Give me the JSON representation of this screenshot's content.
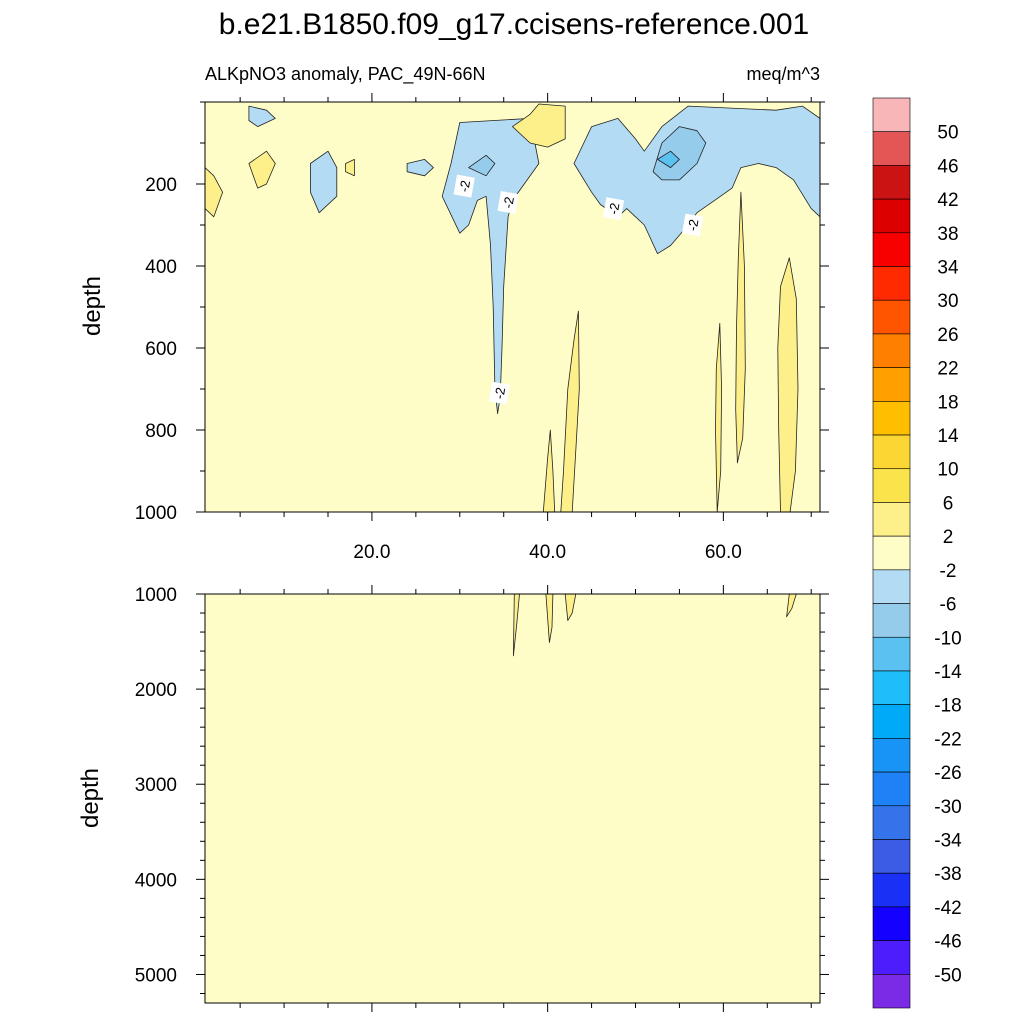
{
  "title": "b.e21.B1850.f09_g17.ccisens-reference.001",
  "chart_data": [
    {
      "type": "contour",
      "subtitle_left": "ALKpNO3 anomaly, PAC_49N-66N",
      "subtitle_right": "meq/m^3",
      "ylabel": "depth",
      "xlim": [
        1,
        71
      ],
      "ylim": [
        0,
        1000
      ],
      "y_reversed": true,
      "xticks": [
        20,
        40,
        60
      ],
      "xtick_labels": [
        "20.0",
        "40.0",
        "60.0"
      ],
      "yticks": [
        200,
        400,
        600,
        800,
        1000
      ],
      "ytick_labels": [
        "200",
        "400",
        "600",
        "800",
        "1000"
      ],
      "background_level": "-2 to 2",
      "contour_labels": [
        {
          "text": "-2",
          "x": 30.5,
          "y": 205
        },
        {
          "text": "-2",
          "x": 35.5,
          "y": 245
        },
        {
          "text": "-2",
          "x": 47.5,
          "y": 260
        },
        {
          "text": "-2",
          "x": 56.5,
          "y": 300
        },
        {
          "text": "-2",
          "x": 34.5,
          "y": 710
        }
      ],
      "regions": [
        {
          "level": "-6 to -2",
          "points": [
            [
              28,
              230
            ],
            [
              29,
              150
            ],
            [
              30,
              50
            ],
            [
              38,
              40
            ],
            [
              39,
              150
            ],
            [
              37,
              210
            ],
            [
              36,
              240
            ],
            [
              35.5,
              280
            ],
            [
              35,
              450
            ],
            [
              34.8,
              600
            ],
            [
              34.6,
              720
            ],
            [
              34.3,
              760
            ],
            [
              34,
              700
            ],
            [
              33.8,
              500
            ],
            [
              33.5,
              350
            ],
            [
              33,
              230
            ],
            [
              32,
              240
            ],
            [
              31,
              300
            ],
            [
              30,
              320
            ]
          ]
        },
        {
          "level": "-6 to -2",
          "points": [
            [
              43,
              150
            ],
            [
              45,
              60
            ],
            [
              48,
              40
            ],
            [
              50,
              90
            ],
            [
              51,
              120
            ],
            [
              53,
              60
            ],
            [
              56,
              10
            ],
            [
              66,
              20
            ],
            [
              69,
              10
            ],
            [
              71,
              40
            ],
            [
              71,
              280
            ],
            [
              70,
              260
            ],
            [
              68,
              190
            ],
            [
              66,
              160
            ],
            [
              64,
              150
            ],
            [
              62,
              160
            ],
            [
              61,
              210
            ],
            [
              59,
              240
            ],
            [
              57,
              270
            ],
            [
              56,
              300
            ],
            [
              54,
              350
            ],
            [
              52.5,
              370
            ],
            [
              51,
              300
            ],
            [
              49,
              260
            ],
            [
              48,
              280
            ],
            [
              46,
              250
            ],
            [
              45,
              220
            ]
          ]
        },
        {
          "level": "-6 to -2",
          "points": [
            [
              13,
              150
            ],
            [
              15,
              120
            ],
            [
              16,
              160
            ],
            [
              16,
              230
            ],
            [
              14,
              270
            ],
            [
              13,
              220
            ]
          ]
        },
        {
          "level": "-6 to -2",
          "points": [
            [
              24,
              150
            ],
            [
              26,
              140
            ],
            [
              27,
              160
            ],
            [
              26,
              180
            ],
            [
              24,
              170
            ]
          ]
        },
        {
          "level": "-6 to -2",
          "points": [
            [
              6,
              10
            ],
            [
              8,
              20
            ],
            [
              9,
              40
            ],
            [
              7,
              60
            ],
            [
              6,
              45
            ]
          ]
        },
        {
          "level": "-10 to -6",
          "points": [
            [
              31,
              160
            ],
            [
              33,
              130
            ],
            [
              34,
              150
            ],
            [
              33,
              180
            ]
          ]
        },
        {
          "level": "-10 to -6",
          "points": [
            [
              52,
              170
            ],
            [
              53,
              100
            ],
            [
              55,
              60
            ],
            [
              57,
              70
            ],
            [
              58,
              100
            ],
            [
              57,
              150
            ],
            [
              55,
              190
            ],
            [
              53,
              190
            ]
          ]
        },
        {
          "level": "-14 to -10",
          "points": [
            [
              52.5,
              140
            ],
            [
              54,
              120
            ],
            [
              55,
              140
            ],
            [
              54,
              160
            ]
          ]
        },
        {
          "level": "2 to 6",
          "points": [
            [
              36,
              60
            ],
            [
              38,
              30
            ],
            [
              39,
              5
            ],
            [
              42,
              10
            ],
            [
              42,
              90
            ],
            [
              40,
              110
            ],
            [
              38,
              100
            ]
          ]
        },
        {
          "level": "2 to 6",
          "points": [
            [
              41.5,
              1000
            ],
            [
              41.8,
              900
            ],
            [
              42.3,
              700
            ],
            [
              43,
              580
            ],
            [
              43.5,
              510
            ],
            [
              43.6,
              700
            ],
            [
              43.2,
              850
            ],
            [
              42.8,
              1000
            ]
          ]
        },
        {
          "level": "2 to 6",
          "points": [
            [
              39.5,
              1000
            ],
            [
              40,
              870
            ],
            [
              40.3,
              800
            ],
            [
              40.6,
              900
            ],
            [
              40.8,
              1000
            ]
          ]
        },
        {
          "level": "2 to 6",
          "points": [
            [
              59.3,
              1000
            ],
            [
              59.1,
              800
            ],
            [
              59.2,
              650
            ],
            [
              59.6,
              540
            ],
            [
              59.8,
              700
            ],
            [
              59.7,
              900
            ]
          ]
        },
        {
          "level": "2 to 6",
          "points": [
            [
              61.6,
              880
            ],
            [
              61.4,
              750
            ],
            [
              61.5,
              550
            ],
            [
              61.7,
              380
            ],
            [
              62,
              220
            ],
            [
              62.4,
              400
            ],
            [
              62.5,
              650
            ],
            [
              62.2,
              820
            ]
          ]
        },
        {
          "level": "2 to 6",
          "points": [
            [
              66.5,
              1000
            ],
            [
              66.3,
              800
            ],
            [
              66.2,
              600
            ],
            [
              66.5,
              450
            ],
            [
              67.5,
              380
            ],
            [
              68.3,
              480
            ],
            [
              68.5,
              700
            ],
            [
              68.2,
              900
            ],
            [
              67.6,
              1000
            ]
          ]
        },
        {
          "level": "2 to 6",
          "points": [
            [
              1,
              160
            ],
            [
              2,
              180
            ],
            [
              3,
              220
            ],
            [
              2,
              280
            ],
            [
              1,
              260
            ]
          ]
        },
        {
          "level": "2 to 6",
          "points": [
            [
              6,
              150
            ],
            [
              8,
              120
            ],
            [
              9,
              150
            ],
            [
              8,
              200
            ],
            [
              7,
              210
            ]
          ]
        },
        {
          "level": "2 to 6",
          "points": [
            [
              17,
              150
            ],
            [
              18,
              140
            ],
            [
              18,
              180
            ],
            [
              17,
              170
            ]
          ]
        }
      ]
    },
    {
      "type": "contour",
      "ylabel": "depth",
      "xlim": [
        1,
        71
      ],
      "ylim": [
        1000,
        5300
      ],
      "y_reversed": true,
      "yticks": [
        1000,
        2000,
        3000,
        4000,
        5000
      ],
      "ytick_labels": [
        "1000",
        "2000",
        "3000",
        "4000",
        "5000"
      ],
      "background_level": "-2 to 2",
      "regions": [
        {
          "level": "2 to 6",
          "points": [
            [
              36.2,
              1000
            ],
            [
              36.8,
              1000
            ],
            [
              36.5,
              1300
            ],
            [
              36.1,
              1650
            ]
          ]
        },
        {
          "level": "2 to 6",
          "points": [
            [
              39.8,
              1000
            ],
            [
              40.6,
              1000
            ],
            [
              40.5,
              1350
            ],
            [
              40.2,
              1510
            ]
          ]
        },
        {
          "level": "2 to 6",
          "points": [
            [
              42,
              1000
            ],
            [
              43.2,
              1000
            ],
            [
              42.8,
              1200
            ],
            [
              42.3,
              1280
            ]
          ]
        },
        {
          "level": "2 to 6",
          "points": [
            [
              67.5,
              1000
            ],
            [
              68.3,
              1000
            ],
            [
              67.8,
              1150
            ],
            [
              67.2,
              1240
            ]
          ]
        }
      ]
    }
  ],
  "colorbar": {
    "labels": [
      "50",
      "46",
      "42",
      "38",
      "34",
      "30",
      "26",
      "22",
      "18",
      "14",
      "10",
      "6",
      "2",
      "-2",
      "-6",
      "-10",
      "-14",
      "-18",
      "-22",
      "-26",
      "-30",
      "-34",
      "-38",
      "-42",
      "-46",
      "-50"
    ],
    "colors": [
      "#f9b6b9",
      "#e45656",
      "#cc1313",
      "#dc0000",
      "#f90000",
      "#ff2a00",
      "#ff5500",
      "#ff7f00",
      "#ff9f00",
      "#ffbe00",
      "#fcd632",
      "#fbe34c",
      "#fdf08b",
      "#fffdc7",
      "#b3dcf4",
      "#95cbeb",
      "#5bc1f0",
      "#1fbdfa",
      "#00aaf7",
      "#1794f6",
      "#1e82f6",
      "#3473ea",
      "#3d5ce5",
      "#1b30f5",
      "#1400fe",
      "#4d1dfb",
      "#7b2ae6"
    ]
  },
  "level_colors": {
    "-14 to -10": "#5bc1f0",
    "-10 to -6": "#95cbeb",
    "-6 to -2": "#b3dcf4",
    "-2 to 2": "#fffdc7",
    "2 to 6": "#fdf08b"
  }
}
